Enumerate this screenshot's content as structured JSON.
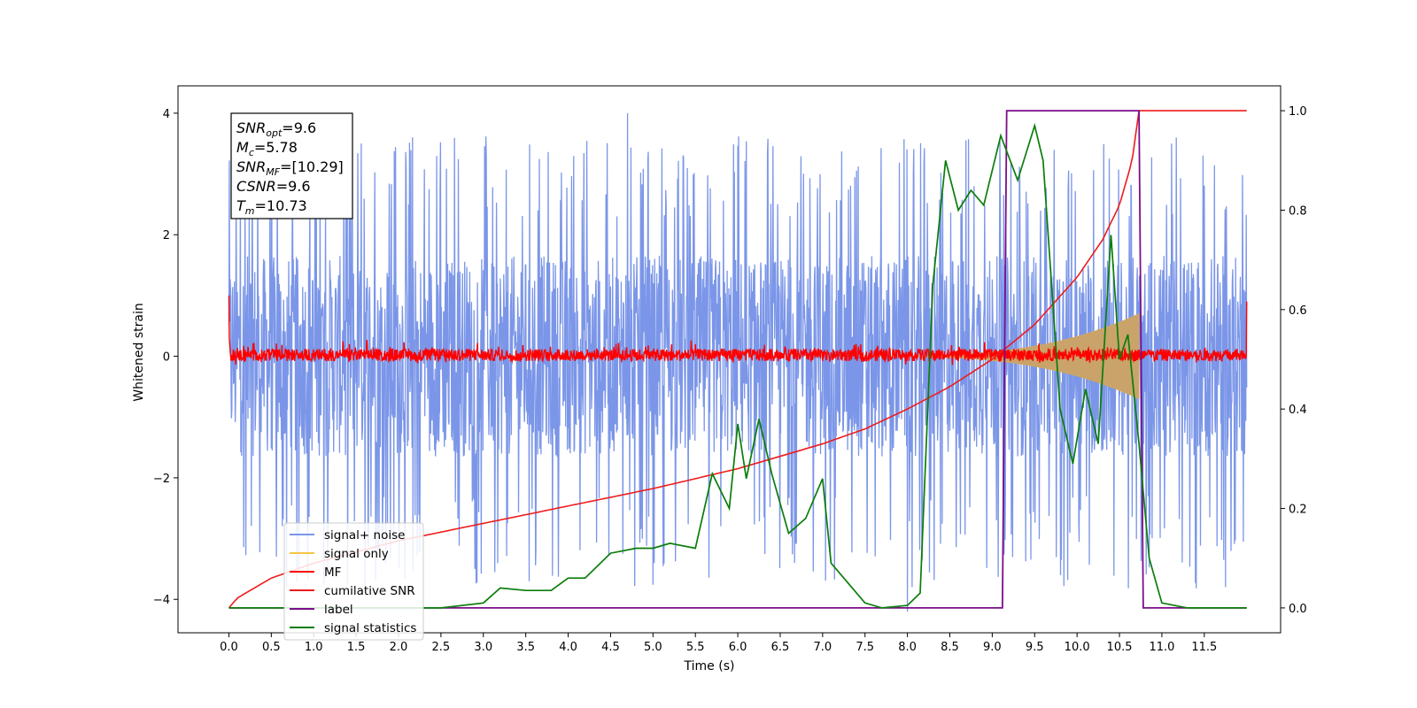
{
  "chart_data": {
    "type": "line",
    "xlabel": "Time (s)",
    "ylabel": "Whitened strain",
    "xlim": [
      -0.6,
      12.4
    ],
    "ylim": [
      -4.55,
      4.45
    ],
    "y2lim": [
      -0.05,
      1.05
    ],
    "grid": false,
    "legend_position": "lower-left",
    "x_ticks": [
      "0.0",
      "0.5",
      "1.0",
      "1.5",
      "2.0",
      "2.5",
      "3.0",
      "3.5",
      "4.0",
      "4.5",
      "5.0",
      "5.5",
      "6.0",
      "6.5",
      "7.0",
      "7.5",
      "8.0",
      "8.5",
      "9.0",
      "9.5",
      "10.0",
      "10.5",
      "11.0",
      "11.5"
    ],
    "y_ticks": [
      -4,
      -2,
      0,
      2,
      4
    ],
    "y2_ticks": [
      "0.0",
      "0.2",
      "0.4",
      "0.6",
      "0.8",
      "1.0"
    ],
    "info_box": [
      {
        "base": "SNR",
        "sub": "opt",
        "value": "=9.6"
      },
      {
        "base": "M",
        "sub": "c",
        "value": "=5.78"
      },
      {
        "base": "SNR",
        "sub": "MF",
        "value": "=[10.29]"
      },
      {
        "base": "CSNR",
        "sub": "",
        "value": "=9.6"
      },
      {
        "base": "T",
        "sub": "m",
        "value": "=10.73"
      }
    ],
    "series": [
      {
        "name": "signal+ noise",
        "color": "#7b96e8",
        "axis": "left",
        "envelope": {
          "x_range": [
            0.0,
            12.0
          ],
          "upper": 2.3,
          "lower": -2.3,
          "peak_max": 4.0,
          "peak_min": -4.2
        }
      },
      {
        "name": "signal only",
        "color": "#f5c542",
        "axis": "left",
        "chirp": {
          "start": 7.5,
          "end": 10.73,
          "max_amplitude": 0.7
        }
      },
      {
        "name": "MF",
        "color": "#ff0000",
        "axis": "left",
        "envelope": {
          "x_range": [
            0.0,
            12.0
          ],
          "upper": 0.15,
          "lower": -0.1,
          "start_value": 1.0,
          "end_value": 0.9
        }
      },
      {
        "name": "cumilative SNR",
        "color": "#ee1c1c",
        "axis": "right",
        "x": [
          0.0,
          0.1,
          0.5,
          1.0,
          2.0,
          3.0,
          4.0,
          5.0,
          6.0,
          7.0,
          7.5,
          8.0,
          8.5,
          9.0,
          9.5,
          10.0,
          10.3,
          10.5,
          10.65,
          10.73,
          12.0
        ],
        "y": [
          0.0,
          0.02,
          0.06,
          0.09,
          0.135,
          0.17,
          0.205,
          0.24,
          0.28,
          0.33,
          0.36,
          0.4,
          0.445,
          0.5,
          0.57,
          0.665,
          0.74,
          0.81,
          0.9,
          1.0,
          1.0
        ]
      },
      {
        "name": "label",
        "color": "#7b0e8a",
        "axis": "right",
        "x": [
          0.0,
          9.12,
          9.17,
          10.73,
          10.78,
          12.0
        ],
        "y": [
          0.0,
          0.0,
          1.0,
          1.0,
          0.0,
          0.0
        ]
      },
      {
        "name": "signal statistics",
        "color": "#0a7d0a",
        "axis": "right",
        "x": [
          0.0,
          1.0,
          2.0,
          2.5,
          3.0,
          3.2,
          3.5,
          3.8,
          4.0,
          4.2,
          4.5,
          4.8,
          5.0,
          5.2,
          5.5,
          5.7,
          5.9,
          6.0,
          6.1,
          6.25,
          6.4,
          6.6,
          6.8,
          7.0,
          7.1,
          7.3,
          7.5,
          7.7,
          8.0,
          8.15,
          8.3,
          8.45,
          8.6,
          8.75,
          8.9,
          9.1,
          9.3,
          9.5,
          9.6,
          9.8,
          9.95,
          10.1,
          10.25,
          10.4,
          10.5,
          10.6,
          10.73,
          10.85,
          11.0,
          11.3,
          12.0
        ],
        "y": [
          0.0,
          0.0,
          0.0,
          0.0,
          0.01,
          0.04,
          0.035,
          0.035,
          0.06,
          0.06,
          0.11,
          0.12,
          0.12,
          0.13,
          0.12,
          0.27,
          0.2,
          0.37,
          0.26,
          0.38,
          0.27,
          0.15,
          0.18,
          0.26,
          0.09,
          0.05,
          0.01,
          0.0,
          0.005,
          0.03,
          0.65,
          0.9,
          0.8,
          0.84,
          0.81,
          0.95,
          0.86,
          0.97,
          0.9,
          0.4,
          0.29,
          0.44,
          0.33,
          0.75,
          0.5,
          0.55,
          0.33,
          0.1,
          0.01,
          0.0,
          0.0
        ]
      }
    ]
  }
}
